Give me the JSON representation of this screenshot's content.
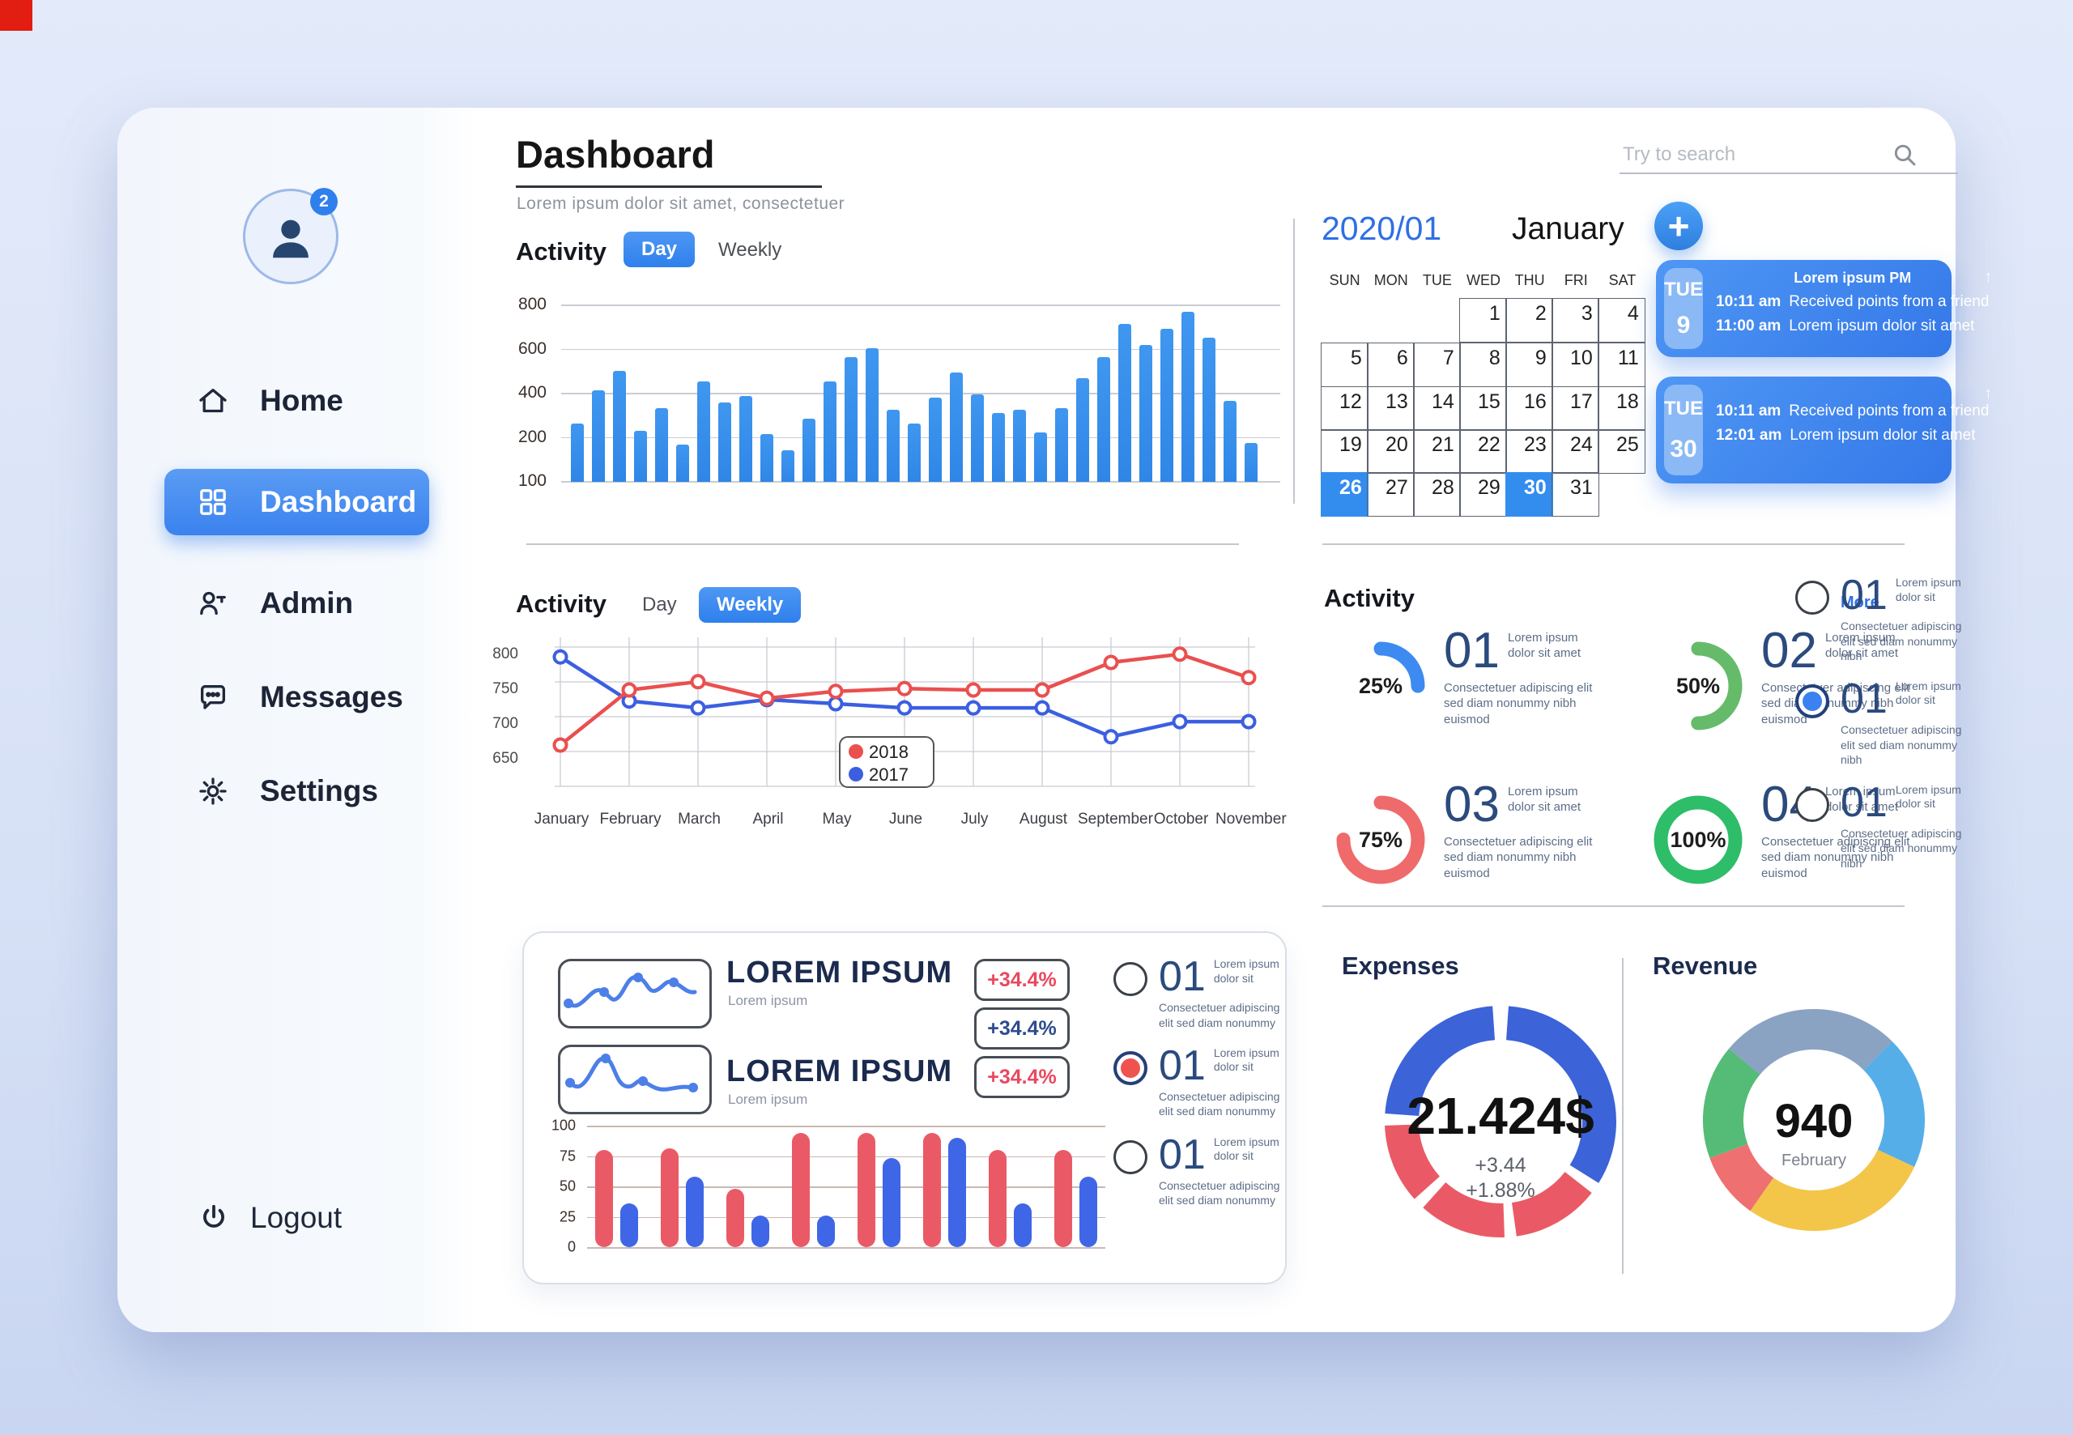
{
  "colors": {
    "primary": "#3d8af0",
    "bar_blue": "#2f86e6",
    "red": "#ea5a66",
    "green": "#66bb6a"
  },
  "header": {
    "title": "Dashboard",
    "subtitle": "Lorem ipsum dolor sit amet, consectetuer"
  },
  "search": {
    "placeholder": "Try to search"
  },
  "sidebar": {
    "avatar_badge": "2",
    "items": [
      {
        "label": "Home",
        "icon": "home-icon",
        "active": false
      },
      {
        "label": "Dashboard",
        "icon": "dashboard-icon",
        "active": true
      },
      {
        "label": "Admin",
        "icon": "admin-icon",
        "active": false
      },
      {
        "label": "Messages",
        "icon": "messages-icon",
        "active": false
      },
      {
        "label": "Settings",
        "icon": "settings-icon",
        "active": false
      }
    ],
    "logout": "Logout"
  },
  "activity_bar": {
    "title": "Activity",
    "day_label": "Day",
    "weekly_label": "Weekly",
    "active": "Day",
    "y_labels": [
      "800",
      "600",
      "400",
      "200",
      "100"
    ],
    "values": [
      33,
      52,
      63,
      29,
      42,
      21,
      57,
      45,
      49,
      27,
      18,
      36,
      57,
      71,
      76,
      41,
      33,
      48,
      62,
      50,
      39,
      41,
      28,
      42,
      59,
      71,
      90,
      78,
      87,
      97,
      82,
      46,
      22
    ]
  },
  "activity_line": {
    "title": "Activity",
    "day_label": "Day",
    "weekly_label": "Weekly",
    "active": "Weekly",
    "y_labels": [
      "800",
      "750",
      "700",
      "650"
    ],
    "months": [
      "January",
      "February",
      "March",
      "April",
      "May",
      "June",
      "July",
      "August",
      "September",
      "October",
      "November"
    ],
    "series": [
      {
        "name": "2018",
        "color": "#e9504f",
        "values": [
          30,
          70,
          76,
          64,
          69,
          71,
          70,
          70,
          90,
          96,
          79
        ]
      },
      {
        "name": "2017",
        "color": "#3b5fe0",
        "values": [
          94,
          62,
          57,
          63,
          60,
          57,
          57,
          57,
          36,
          47,
          47
        ]
      }
    ]
  },
  "calendar": {
    "year_month": "2020/01",
    "month_name": "January",
    "add_label": "+",
    "day_headers": [
      "SUN",
      "MON",
      "TUE",
      "WED",
      "THU",
      "FRI",
      "SAT"
    ],
    "weeks": [
      [
        "",
        "",
        "",
        "1",
        "2",
        "3",
        "4"
      ],
      [
        "5",
        "6",
        "7",
        "8",
        "9",
        "10",
        "11"
      ],
      [
        "12",
        "13",
        "14",
        "15",
        "16",
        "17",
        "18"
      ],
      [
        "19",
        "20",
        "21",
        "22",
        "23",
        "24",
        "25"
      ],
      [
        "26",
        "27",
        "28",
        "29",
        "30",
        "31",
        ""
      ]
    ],
    "highlighted": [
      "26",
      "30"
    ]
  },
  "events": [
    {
      "day": "TUE",
      "date": "9",
      "header": "Lorem ipsum PM",
      "arrow": "↑",
      "rows": [
        {
          "time": "10:11 am",
          "text": "Received points from a friend"
        },
        {
          "time": "11:00 am",
          "text": "Lorem ipsum dolor sit amet"
        }
      ]
    },
    {
      "day": "TUE",
      "date": "30",
      "header": "",
      "arrow": "↑",
      "rows": [
        {
          "time": "10:11 am",
          "text": "Received points from a friend"
        },
        {
          "time": "12:01 am",
          "text": "Lorem ipsum dolor sit amet"
        }
      ]
    }
  ],
  "activity_stats": {
    "title": "Activity",
    "link_label": "More",
    "desc_side": "Lorem ipsum dolor sit amet",
    "desc_below": "Consectetuer adipiscing elit sed diam nonummy nibh euismod",
    "items": [
      {
        "num": "01",
        "percent": "25%",
        "value": 25,
        "color": "#3d8af0"
      },
      {
        "num": "02",
        "percent": "50%",
        "value": 50,
        "color": "#66bb6a"
      },
      {
        "num": "03",
        "percent": "75%",
        "value": 75,
        "color": "#ef6a6a"
      },
      {
        "num": "04",
        "percent": "100%",
        "value": 100,
        "color": "#2ebd68"
      }
    ]
  },
  "side_list": {
    "selected_color": "#3b82f0",
    "desc_side": "Lorem ipsum dolor sit",
    "desc_below": "Consectetuer adipiscing elit sed diam nonummy nibh",
    "items": [
      {
        "num": "01",
        "selected": false
      },
      {
        "num": "01",
        "selected": true
      },
      {
        "num": "01",
        "selected": false
      }
    ]
  },
  "summary_card": {
    "rows": [
      {
        "title": "LOREM IPSUM",
        "subtitle": "Lorem ipsum"
      },
      {
        "title": "LOREM IPSUM",
        "subtitle": "Lorem ipsum"
      }
    ],
    "badges": [
      {
        "label": "+34.4%",
        "color": "#e8495f"
      },
      {
        "label": "+34.4%",
        "color": "#2d4b8e"
      },
      {
        "label": "+34.4%",
        "color": "#e8495f"
      }
    ],
    "bar_chart": {
      "y_labels": [
        "100",
        "75",
        "50",
        "25",
        "0"
      ],
      "series_colors": [
        "#ea5a66",
        "#3e66e6"
      ],
      "groups": [
        [
          83,
          37
        ],
        [
          84,
          60
        ],
        [
          50,
          27
        ],
        [
          97,
          27
        ],
        [
          97,
          76
        ],
        [
          97,
          93
        ],
        [
          83,
          37
        ],
        [
          83,
          60
        ]
      ]
    },
    "radios": {
      "selected_color": "#ef5350",
      "desc_side": "Lorem ipsum dolor sit",
      "desc_below": "Consectetuer adipiscing elit sed diam nonummy",
      "items": [
        {
          "num": "01",
          "selected": false
        },
        {
          "num": "01",
          "selected": true
        },
        {
          "num": "01",
          "selected": false
        }
      ]
    }
  },
  "expenses": {
    "title": "Expenses",
    "value": "21.424$",
    "delta_1": "+3.44",
    "delta_2": "+1.88%",
    "segments": [
      {
        "color": null,
        "deg": 4
      },
      {
        "color": "#3c63d8",
        "deg": 118
      },
      {
        "color": null,
        "deg": 6
      },
      {
        "color": "#ea5a66",
        "deg": 44
      },
      {
        "color": null,
        "deg": 6
      },
      {
        "color": "#ea5a66",
        "deg": 44
      },
      {
        "color": null,
        "deg": 6
      },
      {
        "color": "#ea5a66",
        "deg": 40
      },
      {
        "color": null,
        "deg": 6
      },
      {
        "color": "#3c63d8",
        "deg": 82
      }
    ]
  },
  "revenue": {
    "title": "Revenue",
    "value": "940",
    "label": "February",
    "slices": [
      {
        "color": "#8ba3c2",
        "deg": 45
      },
      {
        "color": "#55aee8",
        "deg": 70
      },
      {
        "color": "#f3c64a",
        "deg": 100
      },
      {
        "color": "#ef7070",
        "deg": 35
      },
      {
        "color": "#54bc77",
        "deg": 60
      },
      {
        "color": "#8ba3c2",
        "deg": 50
      }
    ]
  }
}
